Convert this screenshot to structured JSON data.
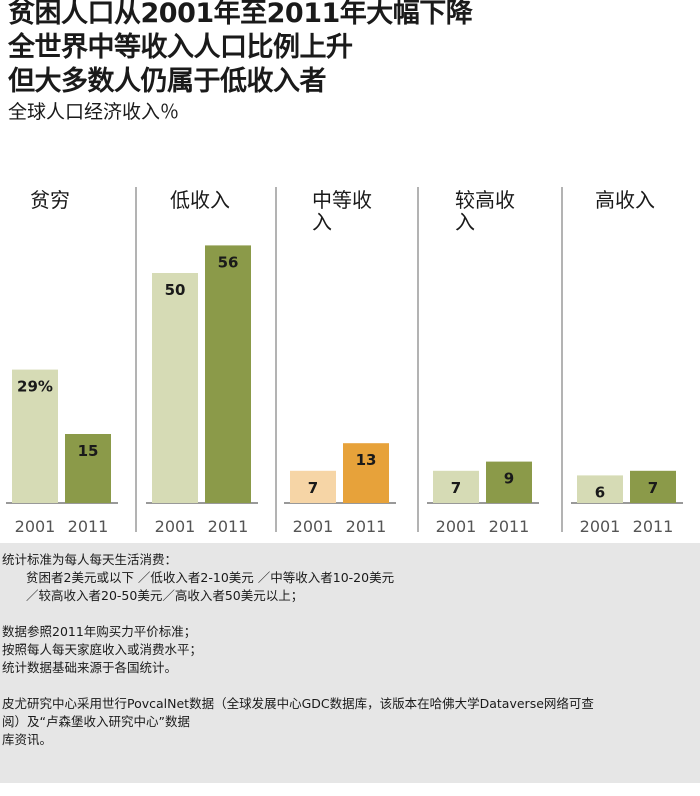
{
  "header": {
    "title_lines": [
      "贫困人口从2001年至2011年大幅下降",
      "全世界中等收入人口比例上升",
      "但大多数人仍属于低收入者"
    ],
    "subtitle": "全球人口经济收入％"
  },
  "chart_data": {
    "type": "bar",
    "title": "全球人口经济收入％",
    "x_categories": [
      "2001",
      "2011"
    ],
    "ylim": [
      0,
      60
    ],
    "grid": false,
    "groups": [
      {
        "label": "贫穷",
        "values": [
          29,
          15
        ],
        "value_labels": [
          "29%",
          "15"
        ],
        "colors": [
          "#d6dbb5",
          "#8b9a49"
        ]
      },
      {
        "label": "低收入",
        "values": [
          50,
          56
        ],
        "value_labels": [
          "50",
          "56"
        ],
        "colors": [
          "#d6dbb5",
          "#8b9a49"
        ]
      },
      {
        "label": "中等收入",
        "values": [
          7,
          13
        ],
        "value_labels": [
          "7",
          "13"
        ],
        "colors": [
          "#f6d5a6",
          "#e7a23a"
        ]
      },
      {
        "label": "较高收入",
        "values": [
          7,
          9
        ],
        "value_labels": [
          "7",
          "9"
        ],
        "colors": [
          "#d6dbb5",
          "#8b9a49"
        ]
      },
      {
        "label": "高收入",
        "values": [
          6,
          7
        ],
        "value_labels": [
          "6",
          "7"
        ],
        "colors": [
          "#d6dbb5",
          "#8b9a49"
        ]
      }
    ],
    "colors": {
      "divider": "#9a9a9a",
      "baseline": "#333333",
      "year_label": "#555555"
    }
  },
  "notes": {
    "criteria_heading": "统计标准为每人每天生活消费：",
    "criteria_line1": "贫困者2美元或以下 ／低收入者2-10美元 ／中等收入者10-20美元",
    "criteria_line2": "／较高收入者20-50美元／高收入者50美元以上；",
    "data_line1": "数据参照2011年购买力平价标准；",
    "data_line2": "按照每人每天家庭收入或消费水平；",
    "data_line3": "统计数据基础来源于各国统计。",
    "source_line1": "皮尤研究中心采用世行PovcalNet数据（全球发展中心GDC数据库，该版本在哈佛大学Dataverse网络可查",
    "source_line2": "阅）及“卢森堡收入研究中心”数据",
    "source_line3": "库资讯。"
  }
}
